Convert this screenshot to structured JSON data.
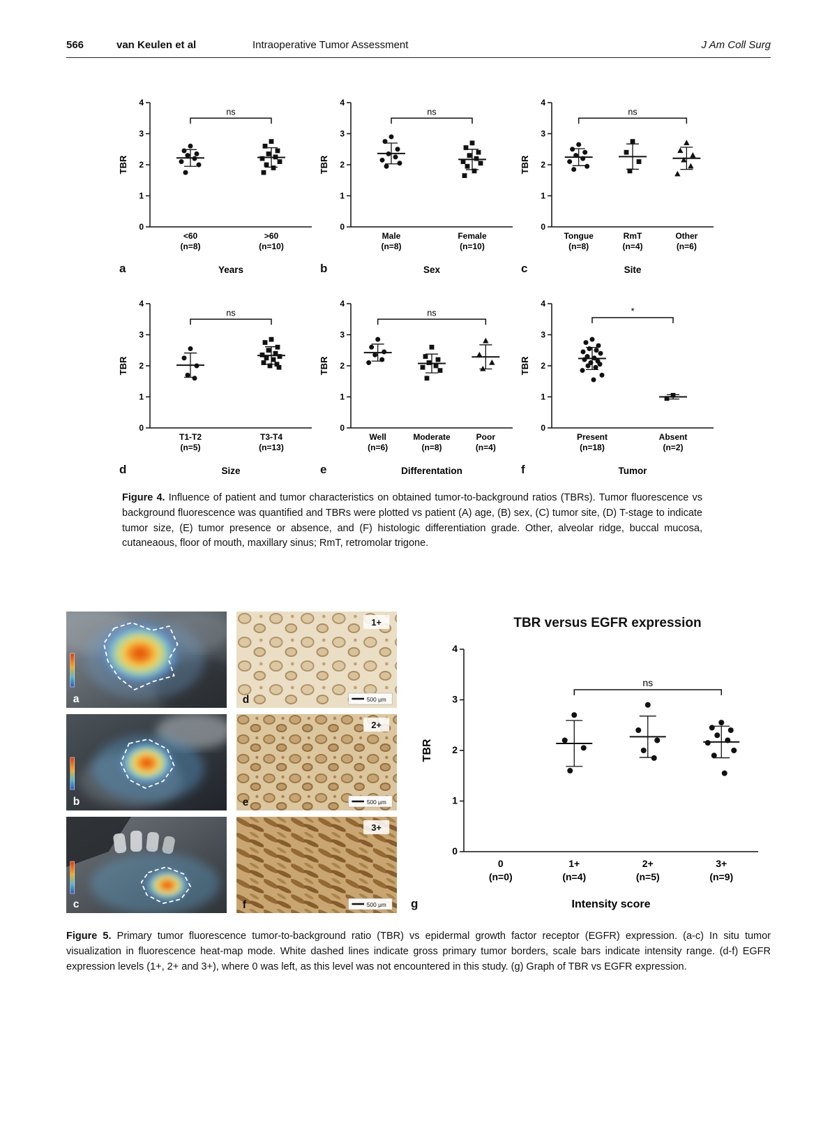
{
  "header": {
    "page_number": "566",
    "authors": "van Keulen et al",
    "article_title": "Intraoperative Tumor Assessment",
    "journal": "J Am Coll Surg"
  },
  "figure4": {
    "caption_label": "Figure 4.",
    "caption_text": "Influence of patient and tumor characteristics on obtained tumor-to-background ratios (TBRs). Tumor fluorescence vs background fluorescence was quantified and TBRs were plotted vs patient (A) age, (B) sex, (C) tumor site, (D) T-stage to indicate tumor size, (E) tumor presence or absence, and (F) histologic differentiation grade. Other, alveolar ridge, buccal mucosa, cutaneaous, floor of mouth, maxillary sinus; RmT, retromolar trigone."
  },
  "figure5": {
    "caption_label": "Figure 5.",
    "caption_text": "Primary tumor fluorescence tumor-to-background ratio (TBR) vs epidermal growth factor receptor (EGFR) expression. (a-c) In situ tumor visualization in fluorescence heat-map mode. White dashed lines indicate gross primary tumor borders, scale bars indicate intensity range. (d-f) EGFR expression levels (1+, 2+ and 3+), where 0 was left, as this level was not encountered in this study. (g) Graph of TBR vs EGFR expression.",
    "photo_panels": [
      {
        "letter": "a"
      },
      {
        "letter": "b"
      },
      {
        "letter": "c"
      }
    ],
    "histology_panels": [
      {
        "letter": "d",
        "grade": "1+",
        "scale_label": "500 μm"
      },
      {
        "letter": "e",
        "grade": "2+",
        "scale_label": "500 μm"
      },
      {
        "letter": "f",
        "grade": "3+",
        "scale_label": "500 μm"
      }
    ]
  },
  "chart_data": [
    {
      "id": "fig4-chart-a",
      "panel_letter": "a",
      "type": "scatter",
      "xlabel": "Years",
      "ylabel": "TBR",
      "ylim": [
        0,
        4
      ],
      "yticks": [
        0,
        1,
        2,
        3,
        4
      ],
      "groups": [
        {
          "label": "<60",
          "n_label": "(n=8)",
          "marker": "circle",
          "values": [
            2.6,
            2.45,
            2.35,
            2.3,
            2.2,
            2.1,
            2.0,
            1.75
          ]
        },
        {
          "label": ">60",
          "n_label": "(n=10)",
          "marker": "square",
          "values": [
            2.75,
            2.6,
            2.45,
            2.35,
            2.25,
            2.2,
            2.1,
            2.0,
            1.9,
            1.75
          ]
        }
      ],
      "significance": {
        "from": 0,
        "to": 1,
        "y": 3.5,
        "label": "ns"
      }
    },
    {
      "id": "fig4-chart-b",
      "panel_letter": "b",
      "type": "scatter",
      "xlabel": "Sex",
      "ylabel": "TBR",
      "ylim": [
        0,
        4
      ],
      "yticks": [
        0,
        1,
        2,
        3,
        4
      ],
      "groups": [
        {
          "label": "Male",
          "n_label": "(n=8)",
          "marker": "circle",
          "values": [
            2.9,
            2.75,
            2.5,
            2.35,
            2.25,
            2.15,
            2.05,
            1.95
          ]
        },
        {
          "label": "Female",
          "n_label": "(n=10)",
          "marker": "square",
          "values": [
            2.7,
            2.55,
            2.4,
            2.3,
            2.2,
            2.1,
            2.05,
            1.95,
            1.8,
            1.65
          ]
        }
      ],
      "significance": {
        "from": 0,
        "to": 1,
        "y": 3.5,
        "label": "ns"
      }
    },
    {
      "id": "fig4-chart-c",
      "panel_letter": "c",
      "type": "scatter",
      "xlabel": "Site",
      "ylabel": "TBR",
      "ylim": [
        0,
        4
      ],
      "yticks": [
        0,
        1,
        2,
        3,
        4
      ],
      "groups": [
        {
          "label": "Tongue",
          "n_label": "(n=8)",
          "marker": "circle",
          "values": [
            2.65,
            2.5,
            2.4,
            2.3,
            2.2,
            2.1,
            1.95,
            1.85
          ]
        },
        {
          "label": "RmT",
          "n_label": "(n=4)",
          "marker": "square",
          "values": [
            2.75,
            2.4,
            2.1,
            1.8
          ]
        },
        {
          "label": "Other",
          "n_label": "(n=6)",
          "marker": "triangle",
          "values": [
            2.7,
            2.45,
            2.3,
            2.15,
            1.95,
            1.7
          ]
        }
      ],
      "significance": {
        "from": 0,
        "to": 2,
        "y": 3.5,
        "label": "ns"
      }
    },
    {
      "id": "fig4-chart-d",
      "panel_letter": "d",
      "type": "scatter",
      "xlabel": "Size",
      "ylabel": "TBR",
      "ylim": [
        0,
        4
      ],
      "yticks": [
        0,
        1,
        2,
        3,
        4
      ],
      "groups": [
        {
          "label": "T1-T2",
          "n_label": "(n=5)",
          "marker": "circle",
          "values": [
            2.55,
            2.25,
            2.0,
            1.7,
            1.6
          ]
        },
        {
          "label": "T3-T4",
          "n_label": "(n=13)",
          "marker": "square",
          "values": [
            2.85,
            2.75,
            2.6,
            2.5,
            2.4,
            2.35,
            2.3,
            2.25,
            2.2,
            2.1,
            2.05,
            2.0,
            1.95
          ]
        }
      ],
      "significance": {
        "from": 0,
        "to": 1,
        "y": 3.5,
        "label": "ns"
      }
    },
    {
      "id": "fig4-chart-e",
      "panel_letter": "e",
      "type": "scatter",
      "xlabel": "Differentation",
      "ylabel": "TBR",
      "ylim": [
        0,
        4
      ],
      "yticks": [
        0,
        1,
        2,
        3,
        4
      ],
      "groups": [
        {
          "label": "Well",
          "n_label": "(n=6)",
          "marker": "circle",
          "values": [
            2.85,
            2.6,
            2.45,
            2.35,
            2.2,
            2.1
          ]
        },
        {
          "label": "Moderate",
          "n_label": "(n=8)",
          "marker": "square",
          "values": [
            2.6,
            2.3,
            2.2,
            2.1,
            2.0,
            1.95,
            1.85,
            1.6
          ]
        },
        {
          "label": "Poor",
          "n_label": "(n=4)",
          "marker": "triangle",
          "values": [
            2.8,
            2.35,
            2.1,
            1.9
          ]
        }
      ],
      "significance": {
        "from": 0,
        "to": 2,
        "y": 3.5,
        "label": "ns"
      }
    },
    {
      "id": "fig4-chart-f",
      "panel_letter": "f",
      "type": "scatter",
      "xlabel": "Tumor",
      "ylabel": "TBR",
      "ylim": [
        0,
        4
      ],
      "yticks": [
        0,
        1,
        2,
        3,
        4
      ],
      "groups": [
        {
          "label": "Present",
          "n_label": "(n=18)",
          "marker": "circle",
          "values": [
            2.85,
            2.75,
            2.65,
            2.55,
            2.5,
            2.45,
            2.4,
            2.3,
            2.25,
            2.2,
            2.15,
            2.1,
            2.05,
            2.0,
            1.95,
            1.85,
            1.7,
            1.55
          ]
        },
        {
          "label": "Absent",
          "n_label": "(n=2)",
          "marker": "square",
          "values": [
            1.05,
            0.95
          ]
        }
      ],
      "significance": {
        "from": 0,
        "to": 1,
        "y": 3.55,
        "label": "*"
      }
    },
    {
      "id": "fig5-chart-g",
      "panel_letter": "g",
      "type": "scatter",
      "title": "TBR versus EGFR expression",
      "xlabel": "Intensity score",
      "ylabel": "TBR",
      "ylim": [
        0,
        4
      ],
      "yticks": [
        0,
        1,
        2,
        3,
        4
      ],
      "groups": [
        {
          "label": "0",
          "n_label": "(n=0)",
          "marker": "circle",
          "values": []
        },
        {
          "label": "1+",
          "n_label": "(n=4)",
          "marker": "circle",
          "values": [
            2.7,
            2.2,
            2.05,
            1.6
          ]
        },
        {
          "label": "2+",
          "n_label": "(n=5)",
          "marker": "circle",
          "values": [
            2.9,
            2.4,
            2.2,
            2.0,
            1.85
          ]
        },
        {
          "label": "3+",
          "n_label": "(n=9)",
          "marker": "circle",
          "values": [
            2.55,
            2.45,
            2.4,
            2.3,
            2.2,
            2.15,
            2.0,
            1.9,
            1.55
          ]
        }
      ],
      "significance": {
        "from": 1,
        "to": 3,
        "y": 3.2,
        "label": "ns"
      }
    }
  ]
}
